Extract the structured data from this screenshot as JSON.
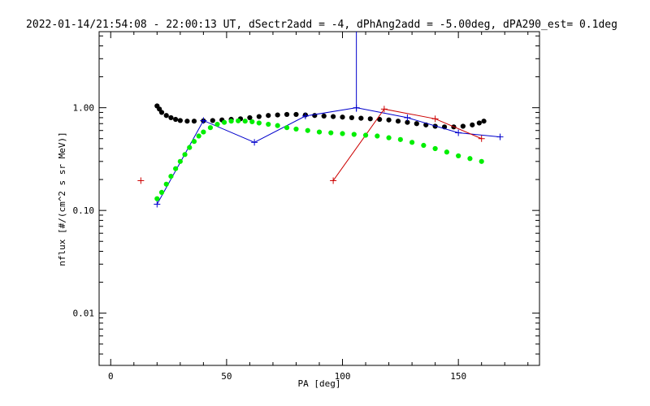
{
  "chart_data": {
    "type": "scatter",
    "title": "2022-01-14/21:54:08 - 22:00:13 UT, dSectr2add = -4, dPhAng2add = -5.00deg, dPA290_est=   0.1deg",
    "xlabel": "PA [deg]",
    "ylabel": "nflux [#/(cm^2 s sr MeV)]",
    "xlim": [
      -5,
      185
    ],
    "ylim": [
      0.0031,
      5.5
    ],
    "yscale": "log",
    "xticks": [
      0,
      50,
      100,
      150
    ],
    "yticks": [
      {
        "value": 0.01,
        "label": "0.01"
      },
      {
        "value": 0.1,
        "label": "0.10"
      },
      {
        "value": 1.0,
        "label": "1.00"
      }
    ],
    "grid": false,
    "series": [
      {
        "color": "#0000cc",
        "style": "line+cross",
        "x": [
          20,
          40,
          62,
          84,
          106,
          128,
          150,
          168
        ],
        "y": [
          0.115,
          0.75,
          0.46,
          0.83,
          1.0,
          0.8,
          0.57,
          0.52
        ],
        "error_bars": [
          {
            "x": 106,
            "y_low": 1.0,
            "y_high": 5.5
          }
        ]
      },
      {
        "color": "#cc0000",
        "style": "line+cross",
        "x": [
          13,
          96,
          118,
          140,
          160
        ],
        "y": [
          0.195,
          0.195,
          0.97,
          0.78,
          0.5
        ],
        "connected_from_index": 1
      },
      {
        "color": "#000000",
        "style": "dots",
        "x": [
          20,
          21,
          22,
          24,
          26,
          28,
          30,
          33,
          36,
          40,
          44,
          48,
          52,
          56,
          60,
          64,
          68,
          72,
          76,
          80,
          84,
          88,
          92,
          96,
          100,
          104,
          108,
          112,
          116,
          120,
          124,
          128,
          132,
          136,
          140,
          144,
          148,
          152,
          156,
          159,
          161
        ],
        "y": [
          1.04,
          0.97,
          0.9,
          0.84,
          0.8,
          0.77,
          0.75,
          0.74,
          0.74,
          0.745,
          0.75,
          0.76,
          0.77,
          0.78,
          0.8,
          0.82,
          0.84,
          0.85,
          0.86,
          0.86,
          0.85,
          0.84,
          0.83,
          0.82,
          0.81,
          0.8,
          0.79,
          0.78,
          0.77,
          0.76,
          0.74,
          0.72,
          0.7,
          0.68,
          0.66,
          0.65,
          0.65,
          0.66,
          0.68,
          0.71,
          0.74
        ]
      },
      {
        "color": "#00ee00",
        "style": "dots",
        "x": [
          20,
          22,
          24,
          26,
          28,
          30,
          32,
          34,
          36,
          38,
          40,
          43,
          46,
          49,
          52,
          55,
          58,
          61,
          64,
          68,
          72,
          76,
          80,
          85,
          90,
          95,
          100,
          105,
          110,
          115,
          120,
          125,
          130,
          135,
          140,
          145,
          150,
          155,
          160
        ],
        "y": [
          0.13,
          0.15,
          0.18,
          0.215,
          0.255,
          0.3,
          0.35,
          0.41,
          0.47,
          0.53,
          0.58,
          0.64,
          0.69,
          0.72,
          0.74,
          0.745,
          0.74,
          0.73,
          0.71,
          0.69,
          0.67,
          0.64,
          0.62,
          0.6,
          0.58,
          0.57,
          0.56,
          0.55,
          0.54,
          0.53,
          0.51,
          0.49,
          0.46,
          0.43,
          0.4,
          0.37,
          0.34,
          0.32,
          0.3
        ]
      }
    ]
  }
}
